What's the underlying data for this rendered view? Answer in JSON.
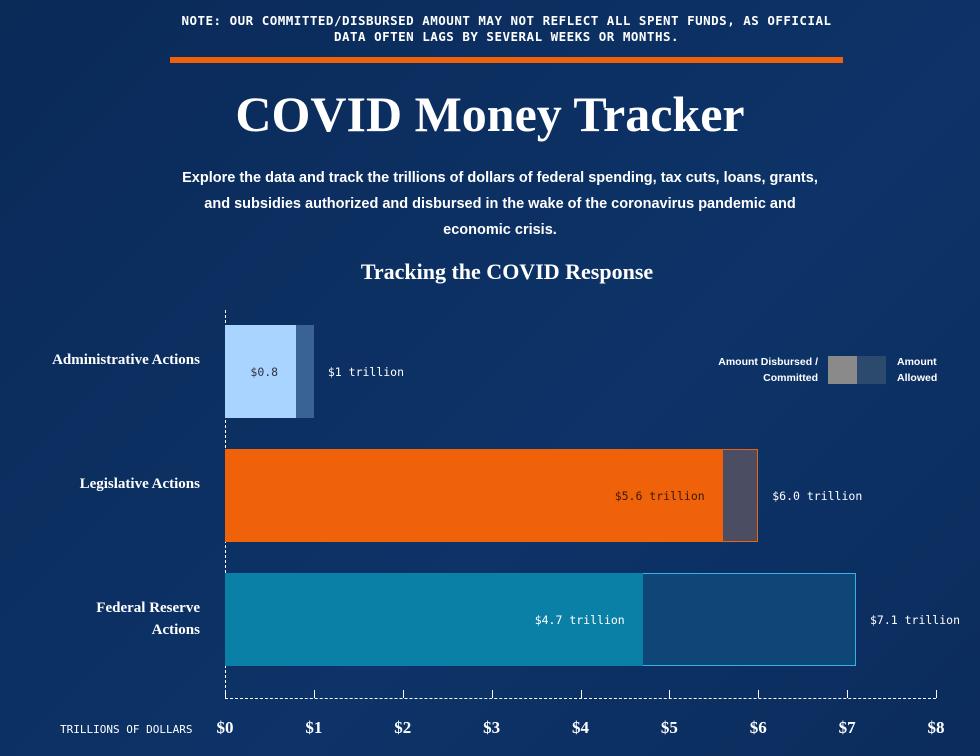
{
  "note": "NOTE: OUR COMMITTED/DISBURSED AMOUNT MAY NOT REFLECT ALL SPENT FUNDS, AS OFFICIAL DATA OFTEN LAGS BY SEVERAL WEEKS OR MONTHS.",
  "header": {
    "title": "COVID Money Tracker",
    "description": "Explore the data and track the trillions of dollars of federal spending, tax cuts, loans, grants, and subsidies authorized and disbursed in the wake of the coronavirus pandemic and economic crisis."
  },
  "chart_data": {
    "type": "bar",
    "orientation": "horizontal",
    "title": "Tracking the COVID Response",
    "categories": [
      "Administrative Actions",
      "Legislative Actions",
      "Federal Reserve Actions"
    ],
    "series": [
      {
        "name": "Amount Disbursed / Committed",
        "color": "#8a8a8a",
        "colors": [
          "#a8d4ff",
          "#f0620a",
          "#0a80a6"
        ],
        "values": [
          0.8,
          5.6,
          4.7
        ],
        "value_labels": [
          "$0.8",
          "$5.6 trillion",
          "$4.7 trillion"
        ]
      },
      {
        "name": "Amount Allowed",
        "color": "#2c4a6e",
        "colors": [
          "#3a6292",
          "#4b4e62",
          "#0e4677"
        ],
        "values": [
          1,
          6.0,
          7.1
        ],
        "value_labels": [
          "$1 trillion",
          "$6.0 trillion",
          "$7.1 trillion"
        ]
      }
    ],
    "x_label": "TRILLIONS OF DOLLARS",
    "xlim": [
      0,
      8
    ],
    "xticks": [
      {
        "value": 0,
        "label": "$0"
      },
      {
        "value": 1,
        "label": "$1"
      },
      {
        "value": 2,
        "label": "$2"
      },
      {
        "value": 3,
        "label": "$3"
      },
      {
        "value": 4,
        "label": "$4"
      },
      {
        "value": 5,
        "label": "$5"
      },
      {
        "value": 6,
        "label": "$6"
      },
      {
        "value": 7,
        "label": "$7"
      },
      {
        "value": 8,
        "label": "$8"
      }
    ],
    "legend": "top-right"
  }
}
